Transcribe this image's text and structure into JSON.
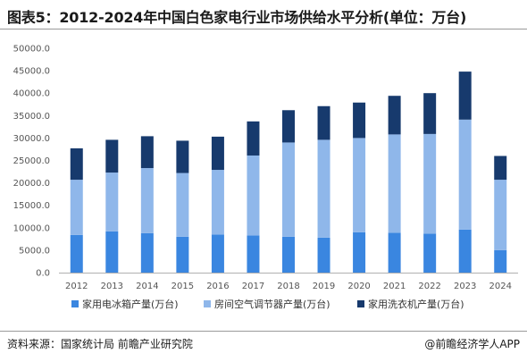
{
  "header": {
    "title": "图表5：2012-2024年中国白色家电行业市场供给水平分析(单位：万台)"
  },
  "footer": {
    "source": "资料来源：国家统计局 前瞻产业研究院",
    "brand": "@前瞻经济学人APP"
  },
  "colors": {
    "fridge": "#3a86e0",
    "ac": "#8fb7ea",
    "washer": "#173a6d"
  },
  "chart_data": {
    "type": "bar",
    "stacked": true,
    "categories": [
      "2012",
      "2013",
      "2014",
      "2015",
      "2016",
      "2017",
      "2018",
      "2019",
      "2020",
      "2021",
      "2022",
      "2023",
      "2024"
    ],
    "series": [
      {
        "name": "家用电冰箱产量(万台)",
        "values": [
          8400,
          9200,
          8800,
          8000,
          8500,
          8300,
          8000,
          7800,
          9000,
          8900,
          8700,
          9600,
          5000
        ]
      },
      {
        "name": "房间空气调节器产量(万台)",
        "values": [
          12300,
          13100,
          14500,
          14200,
          14400,
          17800,
          21000,
          21800,
          21000,
          21900,
          22200,
          24500,
          15700
        ]
      },
      {
        "name": "家用洗衣机产量(万台)",
        "values": [
          7000,
          7300,
          7100,
          7200,
          7400,
          7600,
          7200,
          7500,
          7900,
          8600,
          9100,
          10700,
          5300
        ]
      }
    ],
    "ylim": [
      0,
      50000
    ],
    "yticks": [
      "0.0",
      "5000.0",
      "10000.0",
      "15000.0",
      "20000.0",
      "25000.0",
      "30000.0",
      "35000.0",
      "40000.0",
      "45000.0",
      "50000.0"
    ],
    "legend_position": "bottom",
    "grid": false
  }
}
